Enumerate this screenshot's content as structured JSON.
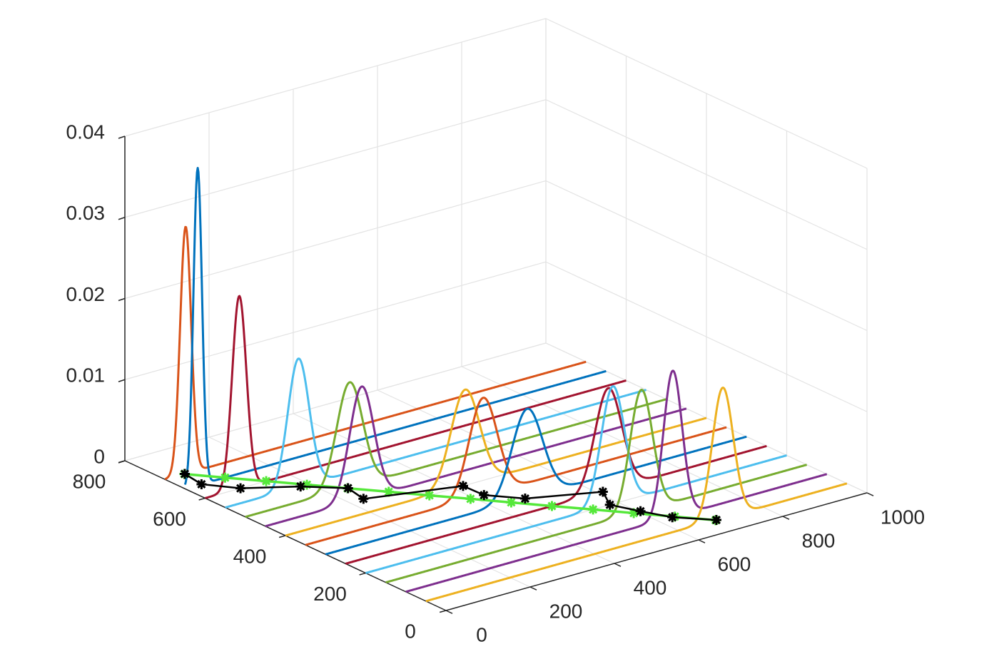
{
  "chart_data": {
    "type": "waterfall3d",
    "xlim": [
      0,
      1000
    ],
    "xticks": [
      0,
      200,
      400,
      600,
      800,
      1000
    ],
    "ylim": [
      0,
      800
    ],
    "yticks": [
      0,
      200,
      400,
      600,
      800
    ],
    "zlim": [
      0,
      0.04
    ],
    "zticks": [
      0,
      0.01,
      0.02,
      0.03,
      0.04
    ],
    "grid": true,
    "series": [
      {
        "color": "#EDB120",
        "y": 50,
        "mu": 705,
        "sigma": 24.8
      },
      {
        "color": "#7E2F8E",
        "y": 100,
        "mu": 634,
        "sigma": 22.1
      },
      {
        "color": "#77AC30",
        "y": 150,
        "mu": 607,
        "sigma": 26.7
      },
      {
        "color": "#4DBEEE",
        "y": 200,
        "mu": 587,
        "sigma": 27.5
      },
      {
        "color": "#A2142F",
        "y": 250,
        "mu": 624,
        "sigma": 31.7
      },
      {
        "color": "#0072BD",
        "y": 300,
        "mu": 479,
        "sigma": 36.3
      },
      {
        "color": "#D95319",
        "y": 350,
        "mu": 422,
        "sigma": 33.2
      },
      {
        "color": "#EDB120",
        "y": 400,
        "mu": 427,
        "sigma": 33.8
      },
      {
        "color": "#7E2F8E",
        "y": 450,
        "mu": 229,
        "sigma": 28.7
      },
      {
        "color": "#77AC30",
        "y": 500,
        "mu": 248,
        "sigma": 30.7
      },
      {
        "color": "#4DBEEE",
        "y": 550,
        "mu": 174,
        "sigma": 25.2
      },
      {
        "color": "#A2142F",
        "y": 600,
        "mu": 81,
        "sigma": 16.8
      },
      {
        "color": "#0072BD",
        "y": 650,
        "mu": 30,
        "sigma": 10.2
      },
      {
        "color": "#D95319",
        "y": 700,
        "mu": 49,
        "sigma": 13.1
      }
    ],
    "tracks": [
      {
        "color": "#55e83a",
        "marker": "star",
        "x": [
          688,
          639,
          589,
          540,
          490,
          441,
          392,
          342,
          293,
          243,
          194,
          145,
          95,
          46
        ],
        "y": [
          50,
          100,
          150,
          200,
          250,
          300,
          350,
          400,
          450,
          500,
          550,
          600,
          650,
          700
        ]
      },
      {
        "color": "#000000",
        "marker": "star",
        "x": [
          690,
          633,
          605,
          580,
          611,
          474,
          424,
          422,
          233,
          244,
          179,
          84,
          39,
          47
        ],
        "y": [
          50,
          100,
          150,
          200,
          250,
          300,
          350,
          400,
          450,
          500,
          550,
          600,
          650,
          700
        ]
      }
    ]
  }
}
